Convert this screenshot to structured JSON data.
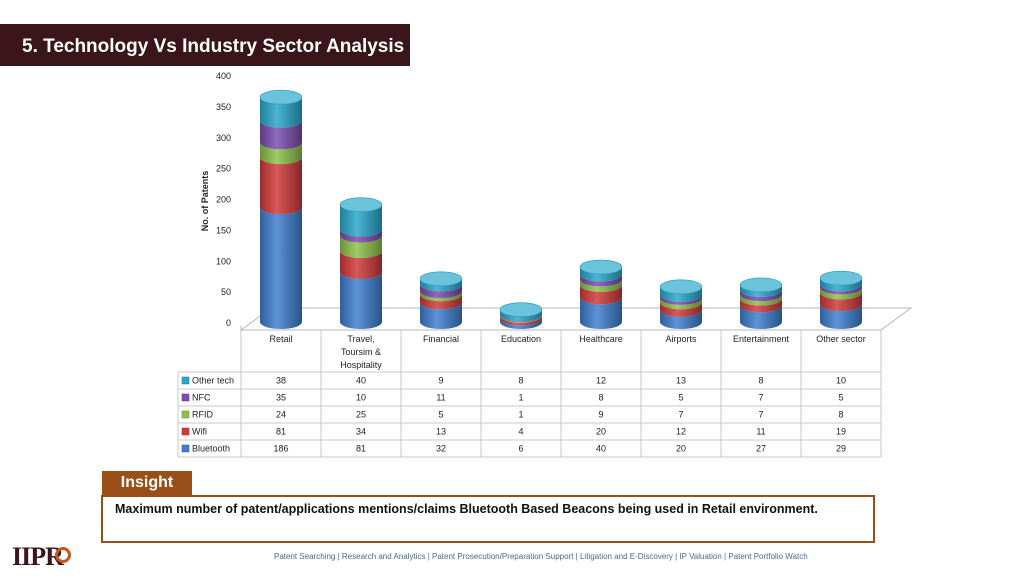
{
  "header": {
    "title": "5. Technology Vs Industry Sector Analysis"
  },
  "chart_data": {
    "type": "bar",
    "stacked": true,
    "ylabel": "No. of Patents",
    "ylim": [
      0,
      400
    ],
    "yticks": [
      0,
      50,
      100,
      150,
      200,
      250,
      300,
      350,
      400
    ],
    "categories": [
      "Retail",
      "Travel, Toursim & Hospitality",
      "Financial",
      "Education",
      "Healthcare",
      "Airports",
      "Entertainment",
      "Other sector"
    ],
    "category_lines": [
      [
        "Retail"
      ],
      [
        "Travel,",
        "Toursim &",
        "Hospitality"
      ],
      [
        "Financial"
      ],
      [
        "Education"
      ],
      [
        "Healthcare"
      ],
      [
        "Airports"
      ],
      [
        "Entertainment"
      ],
      [
        "Other sector"
      ]
    ],
    "series": [
      {
        "name": "Bluetooth",
        "color": "#3f7fd0",
        "values": [
          186,
          81,
          32,
          6,
          40,
          20,
          27,
          29
        ]
      },
      {
        "name": "Wifi",
        "color": "#d23a3a",
        "values": [
          81,
          34,
          13,
          4,
          20,
          12,
          11,
          19
        ]
      },
      {
        "name": "RFID",
        "color": "#8fc24a",
        "values": [
          24,
          25,
          5,
          1,
          9,
          7,
          7,
          8
        ]
      },
      {
        "name": "NFC",
        "color": "#7b4fb0",
        "values": [
          35,
          10,
          11,
          1,
          8,
          5,
          7,
          5
        ]
      },
      {
        "name": "Other tech",
        "color": "#2aa8cc",
        "values": [
          38,
          40,
          9,
          8,
          12,
          13,
          8,
          10
        ]
      }
    ],
    "data_table": true
  },
  "insight": {
    "label": "Insight",
    "text": "Maximum number of patent/applications mentions/claims Bluetooth Based Beacons being used in Retail environment."
  },
  "logo": {
    "text": "IIPR"
  },
  "footer": {
    "text": "Patent Searching | Research and Analytics | Patent Prosecution/Preparation Support | Litigation and E-Discovery | IP Valuation | Patent Portfolio Watch"
  }
}
